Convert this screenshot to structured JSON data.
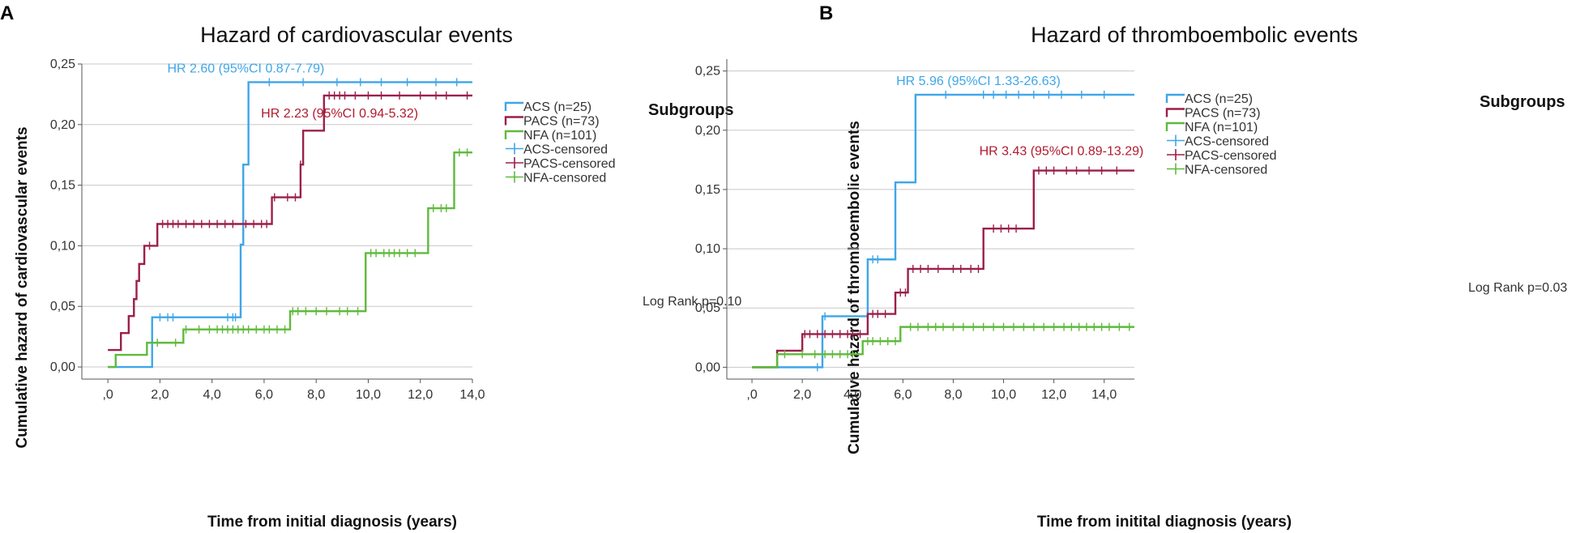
{
  "chart_data": [
    {
      "type": "line",
      "panel_label": "A",
      "title": "Hazard of cardiovascular events",
      "xlabel": "Time from initial diagnosis (years)",
      "ylabel": "Cumulative hazard of cardiovascular events",
      "xlim": [
        -1.0,
        14.0
      ],
      "ylim": [
        -0.01,
        0.25
      ],
      "xticks": [
        0,
        2,
        4,
        6,
        8,
        10,
        12,
        14
      ],
      "xtick_labels": [
        ",0",
        "2,0",
        "4,0",
        "6,0",
        "8,0",
        "10,0",
        "12,0",
        "14,0"
      ],
      "yticks": [
        0.0,
        0.05,
        0.1,
        0.15,
        0.2,
        0.25
      ],
      "ytick_labels": [
        "0,00",
        "0,05",
        "0,10",
        "0,15",
        "0,20",
        "0,25"
      ],
      "grid": "horizontal",
      "legend_title": "Subgroups",
      "legend": [
        {
          "label": "ACS (n=25)",
          "color": "#3ea6e8",
          "kind": "step"
        },
        {
          "label": "PACS (n=73)",
          "color": "#9b1f4b",
          "kind": "step"
        },
        {
          "label": "NFA (n=101)",
          "color": "#5fba3c",
          "kind": "step"
        },
        {
          "label": "ACS-censored",
          "color": "#3ea6e8",
          "kind": "censor"
        },
        {
          "label": "PACS-censored",
          "color": "#9b1f4b",
          "kind": "censor"
        },
        {
          "label": "NFA-censored",
          "color": "#5fba3c",
          "kind": "censor"
        }
      ],
      "series": [
        {
          "name": "ACS (n=25)",
          "color": "#3ea6e8",
          "x": [
            0,
            1.7,
            5.1,
            5.2,
            5.4,
            14.0
          ],
          "y": [
            0,
            0.041,
            0.101,
            0.167,
            0.235,
            0.235
          ],
          "censored_x": [
            2.0,
            2.3,
            2.5,
            4.6,
            4.8,
            4.9,
            6.2,
            7.5,
            8.8,
            9.7,
            10.5,
            11.5,
            12.6,
            13.4
          ]
        },
        {
          "name": "PACS (n=73)",
          "color": "#9b1f4b",
          "x": [
            0,
            0.5,
            0.8,
            1.0,
            1.1,
            1.2,
            1.4,
            1.9,
            3.0,
            6.3,
            7.4,
            7.5,
            8.3,
            14.0
          ],
          "y": [
            0.014,
            0.028,
            0.042,
            0.056,
            0.071,
            0.085,
            0.1,
            0.118,
            0.118,
            0.14,
            0.167,
            0.195,
            0.224,
            0.224
          ],
          "censored_x": [
            1.6,
            2.1,
            2.3,
            2.5,
            2.7,
            3.0,
            3.3,
            3.6,
            3.9,
            4.2,
            4.5,
            4.8,
            5.3,
            5.6,
            5.9,
            6.1,
            6.4,
            6.9,
            7.2,
            7.4,
            8.5,
            8.7,
            8.9,
            9.1,
            9.5,
            10.0,
            10.5,
            11.2,
            12.0,
            12.6,
            13.0,
            13.8
          ]
        },
        {
          "name": "NFA (n=101)",
          "color": "#5fba3c",
          "x": [
            0,
            0.3,
            1.5,
            2.9,
            7.0,
            9.9,
            12.3,
            13.3,
            14.0
          ],
          "y": [
            0,
            0.01,
            0.02,
            0.031,
            0.046,
            0.094,
            0.131,
            0.177,
            0.177
          ],
          "censored_x": [
            1.9,
            2.6,
            3.0,
            3.5,
            3.9,
            4.2,
            4.4,
            4.6,
            4.8,
            5.0,
            5.2,
            5.4,
            5.7,
            6.0,
            6.2,
            6.5,
            6.8,
            7.1,
            7.3,
            7.6,
            8.0,
            8.4,
            8.9,
            9.2,
            9.6,
            10.1,
            10.3,
            10.6,
            10.8,
            11.0,
            11.2,
            11.5,
            11.8,
            12.5,
            12.8,
            13.0,
            13.5,
            13.8
          ]
        }
      ],
      "annotations": [
        {
          "text": "HR 2.60 (95%CI 0.87-7.79)",
          "x": 5.3,
          "y": 0.243,
          "color": "#3ea6e8"
        },
        {
          "text": "HR 2.23 (95%CI 0.94-5.32)",
          "x": 8.9,
          "y": 0.206,
          "color": "#b11a2e"
        }
      ],
      "log_rank": "Log Rank p=0.10"
    },
    {
      "type": "line",
      "panel_label": "B",
      "title": "Hazard of thromboembolic events",
      "xlabel": "Time from initital diagnosis (years)",
      "ylabel": "Cumulative hazard of thromboembolic events",
      "xlim": [
        -1.0,
        15.2
      ],
      "ylim": [
        -0.01,
        0.26
      ],
      "xticks": [
        0,
        2,
        4,
        6,
        8,
        10,
        12,
        14
      ],
      "xtick_labels": [
        ",0",
        "2,0",
        "4,0",
        "6,0",
        "8,0",
        "10,0",
        "12,0",
        "14,0"
      ],
      "yticks": [
        0.0,
        0.05,
        0.1,
        0.15,
        0.2,
        0.25
      ],
      "ytick_labels": [
        "0,00",
        "0,05",
        "0,10",
        "0,15",
        "0,20",
        "0,25"
      ],
      "grid": "horizontal",
      "legend_title": "Subgroups",
      "legend": [
        {
          "label": "ACS (n=25)",
          "color": "#3ea6e8",
          "kind": "step"
        },
        {
          "label": "PACS (n=73)",
          "color": "#9b1f4b",
          "kind": "step"
        },
        {
          "label": "NFA (n=101)",
          "color": "#5fba3c",
          "kind": "step"
        },
        {
          "label": "ACS-censored",
          "color": "#3ea6e8",
          "kind": "censor"
        },
        {
          "label": "PACS-censored",
          "color": "#9b1f4b",
          "kind": "censor"
        },
        {
          "label": "NFA-censored",
          "color": "#5fba3c",
          "kind": "censor"
        }
      ],
      "series": [
        {
          "name": "ACS (n=25)",
          "color": "#3ea6e8",
          "x": [
            0,
            2.8,
            4.6,
            5.7,
            6.5,
            15.2
          ],
          "y": [
            0,
            0.043,
            0.091,
            0.156,
            0.23,
            0.23
          ],
          "censored_x": [
            2.6,
            2.9,
            4.8,
            5.0,
            7.7,
            9.2,
            9.6,
            10.1,
            10.6,
            11.2,
            11.8,
            12.3,
            13.1,
            14.0
          ]
        },
        {
          "name": "PACS (n=73)",
          "color": "#9b1f4b",
          "x": [
            0,
            1.0,
            2.0,
            4.6,
            5.7,
            6.2,
            9.2,
            11.2,
            15.2
          ],
          "y": [
            0,
            0.014,
            0.028,
            0.045,
            0.063,
            0.083,
            0.117,
            0.166,
            0.166
          ],
          "censored_x": [
            2.1,
            2.3,
            2.6,
            2.9,
            3.2,
            3.5,
            3.8,
            4.0,
            4.3,
            4.8,
            5.0,
            5.3,
            5.9,
            6.1,
            6.4,
            6.7,
            7.0,
            7.4,
            8.0,
            8.3,
            8.7,
            9.0,
            9.6,
            9.9,
            10.2,
            10.5,
            11.4,
            11.7,
            12.0,
            12.5,
            12.9,
            13.4,
            13.9,
            14.5
          ]
        },
        {
          "name": "NFA (n=101)",
          "color": "#5fba3c",
          "x": [
            0,
            1.0,
            4.4,
            5.9,
            15.2
          ],
          "y": [
            0,
            0.011,
            0.022,
            0.034,
            0.034
          ],
          "censored_x": [
            1.3,
            2.0,
            2.5,
            2.9,
            3.2,
            3.5,
            3.8,
            4.0,
            4.6,
            4.8,
            5.1,
            5.4,
            5.7,
            6.3,
            6.6,
            7.0,
            7.3,
            7.6,
            8.0,
            8.4,
            8.8,
            9.2,
            9.6,
            10.0,
            10.4,
            10.8,
            11.2,
            11.6,
            12.0,
            12.4,
            12.7,
            13.0,
            13.3,
            13.6,
            13.9,
            14.2,
            14.6,
            15.0
          ]
        }
      ],
      "annotations": [
        {
          "text": "HR 5.96 (95%CI 1.33-26.63)",
          "x": 9.0,
          "y": 0.238,
          "color": "#3ea6e8"
        },
        {
          "text": "HR 3.43 (95%CI 0.89-13.29)",
          "x": 12.3,
          "y": 0.179,
          "color": "#b11a2e"
        }
      ],
      "log_rank": "Log Rank p=0.03"
    }
  ]
}
